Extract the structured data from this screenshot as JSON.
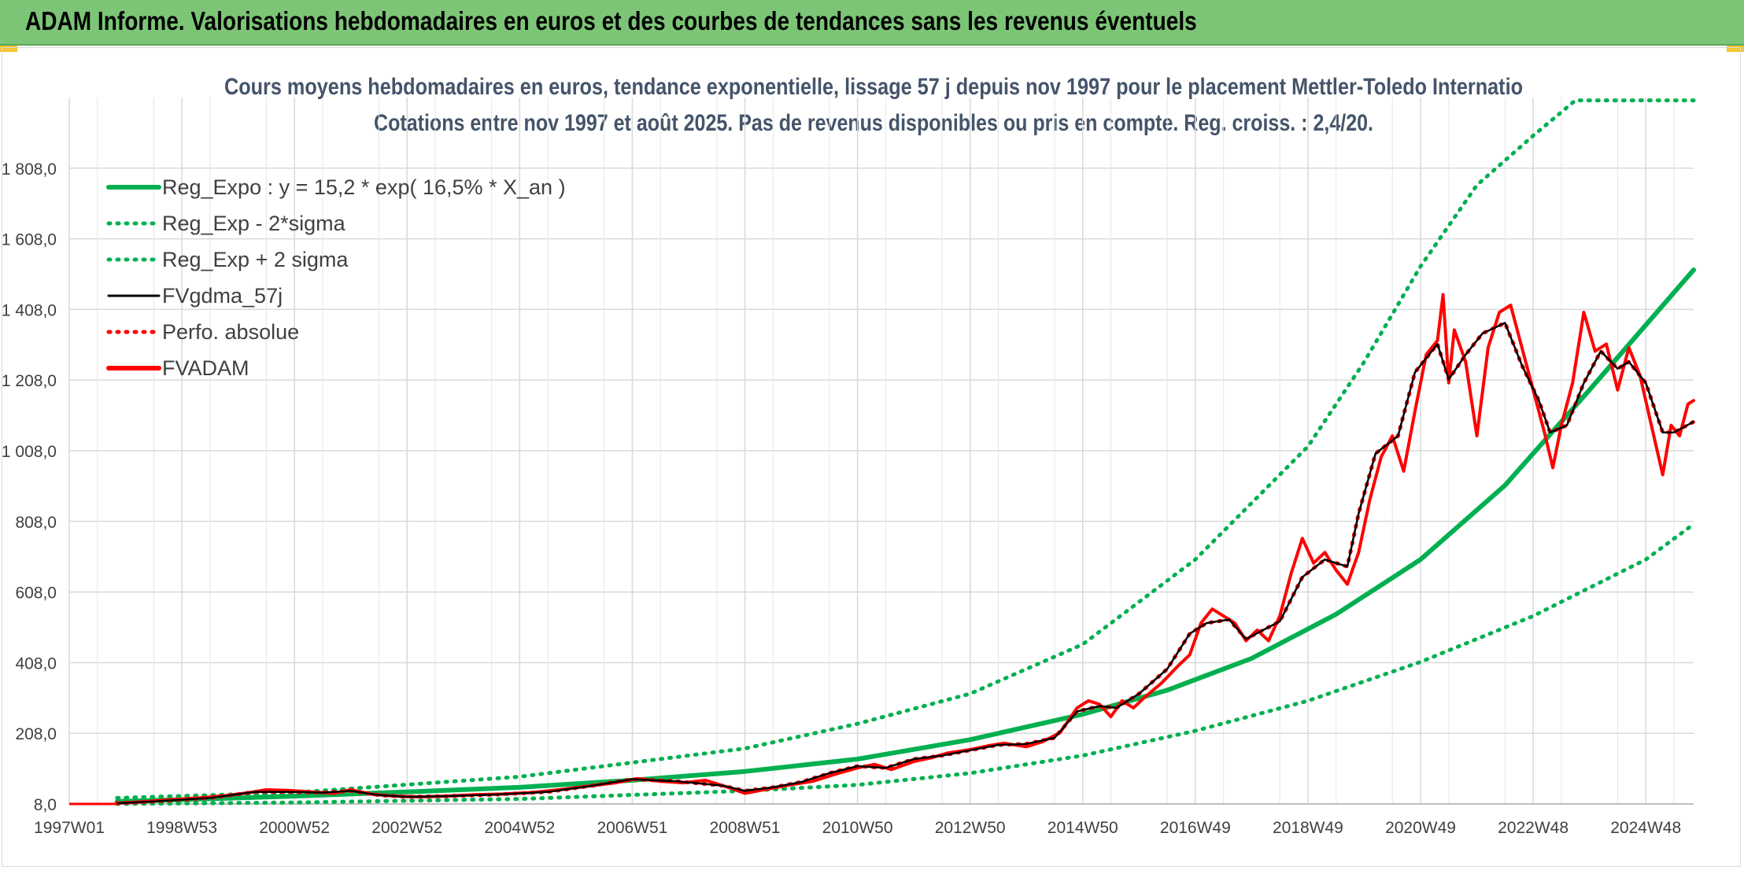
{
  "banner": {
    "title": "ADAM Informe. Valorisations hebdomadaires en euros et des courbes de tendances sans les revenus éventuels"
  },
  "colors": {
    "banner": "#7cc576",
    "trend": "#00b050",
    "smooth": "#000000",
    "price": "#ff0000",
    "title_text": "#44546a"
  },
  "chart_data": {
    "type": "line",
    "title": "Cours moyens hebdomadaires en euros, tendance exponentielle, lissage 57 j depuis nov 1997 pour le placement Mettler-Toledo Internatio",
    "subtitle": "Cotations entre nov 1997 et août 2025. Pas de revenus disponibles ou pris en compte. Reg. croiss. : 2,4/20.",
    "x_range": [
      1997.0,
      2025.85
    ],
    "ylim": [
      8,
      2008
    ],
    "y_ticks": [
      8,
      208,
      408,
      608,
      808,
      1008,
      1208,
      1408,
      1608,
      1808
    ],
    "y_tick_labels": [
      "8,0",
      "208,0",
      "408,0",
      "608,0",
      "808,0",
      "1 008,0",
      "1 208,0",
      "1 408,0",
      "1 608,0",
      "1 808,0"
    ],
    "x_ticks": [
      1997.0,
      1999.0,
      2001.0,
      2003.0,
      2005.0,
      2007.0,
      2009.0,
      2011.0,
      2013.0,
      2015.0,
      2017.0,
      2019.0,
      2021.0,
      2023.0,
      2025.0
    ],
    "x_tick_labels": [
      "1997W01",
      "1998W53",
      "2000W52",
      "2002W52",
      "2004W52",
      "2006W51",
      "2008W51",
      "2010W50",
      "2012W50",
      "2014W50",
      "2016W49",
      "2018W49",
      "2020W49",
      "2022W48",
      "2024W48"
    ],
    "grid": true,
    "legend_position": "top-left",
    "legend": [
      {
        "label": "Reg_Expo : y = 15,2 * exp( 16,5% *  X_an )",
        "color": "#00b050",
        "style": "solid-thick"
      },
      {
        "label": "Reg_Exp - 2*sigma",
        "color": "#00b050",
        "style": "dotted"
      },
      {
        "label": "Reg_Exp + 2 sigma",
        "color": "#00b050",
        "style": "dotted"
      },
      {
        "label": "FVgdma_57j",
        "color": "#000000",
        "style": "solid"
      },
      {
        "label": "Perfo. absolue",
        "color": "#ff0000",
        "style": "dotted"
      },
      {
        "label": "FVADAM",
        "color": "#ff0000",
        "style": "solid-thick"
      }
    ],
    "series": [
      {
        "name": "Reg_Expo : y = 15,2 * exp( 16,5% *  X_an )",
        "x": [
          1997.85,
          1999.0,
          2001.0,
          2003.0,
          2005.0,
          2007.0,
          2009.0,
          2011.0,
          2013.0,
          2015.0,
          2016.5,
          2018.0,
          2019.5,
          2021.0,
          2022.5,
          2024.0,
          2025.85
        ],
        "y": [
          15,
          20,
          30,
          42,
          55,
          75,
          100,
          135,
          190,
          262,
          330,
          420,
          545,
          700,
          910,
          1180,
          1520
        ]
      },
      {
        "name": "Reg_Exp - 2*sigma",
        "x": [
          1997.85,
          2001.0,
          2005.0,
          2009.0,
          2011.0,
          2013.0,
          2015.0,
          2017.0,
          2019.0,
          2021.0,
          2023.0,
          2025.0,
          2025.85
        ],
        "y": [
          8,
          12,
          22,
          45,
          62,
          95,
          145,
          215,
          300,
          410,
          540,
          700,
          800
        ]
      },
      {
        "name": "Reg_Exp + 2 sigma",
        "x": [
          1997.85,
          2001.0,
          2005.0,
          2009.0,
          2011.0,
          2013.0,
          2015.0,
          2017.0,
          2019.0,
          2020.0,
          2021.0,
          2022.0,
          2023.0,
          2023.75,
          2025.85
        ],
        "y": [
          25,
          40,
          85,
          165,
          235,
          320,
          460,
          700,
          1020,
          1260,
          1530,
          1760,
          1900,
          2000,
          2000
        ]
      },
      {
        "name": "FVgdma_57j",
        "x": [
          1997.85,
          1998.5,
          1999.5,
          2000.3,
          2000.9,
          2001.5,
          2002.0,
          2002.5,
          2003.0,
          2003.7,
          2004.5,
          2005.5,
          2006.3,
          2007.0,
          2007.8,
          2008.6,
          2009.0,
          2009.5,
          2010.0,
          2010.5,
          2011.0,
          2011.5,
          2012.0,
          2012.5,
          2013.0,
          2013.5,
          2014.0,
          2014.5,
          2014.9,
          2015.3,
          2015.6,
          2016.0,
          2016.5,
          2016.9,
          2017.2,
          2017.6,
          2017.9,
          2018.2,
          2018.5,
          2018.9,
          2019.3,
          2019.7,
          2019.9,
          2020.2,
          2020.6,
          2020.9,
          2021.3,
          2021.5,
          2021.8,
          2022.1,
          2022.5,
          2022.8,
          2023.1,
          2023.3,
          2023.6,
          2023.9,
          2024.2,
          2024.5,
          2024.7,
          2025.0,
          2025.3,
          2025.5,
          2025.85
        ],
        "y": [
          10,
          15,
          25,
          42,
          42,
          40,
          45,
          33,
          28,
          30,
          34,
          42,
          60,
          78,
          72,
          60,
          45,
          55,
          70,
          95,
          115,
          110,
          135,
          145,
          160,
          175,
          178,
          195,
          270,
          285,
          280,
          320,
          390,
          490,
          520,
          530,
          475,
          500,
          525,
          650,
          700,
          680,
          830,
          1000,
          1050,
          1230,
          1310,
          1210,
          1280,
          1340,
          1370,
          1250,
          1150,
          1060,
          1080,
          1200,
          1290,
          1240,
          1260,
          1200,
          1060,
          1060,
          1090
        ]
      },
      {
        "name": "Perfo. absolue",
        "x": [
          1997.85,
          1998.5,
          1999.5,
          2000.3,
          2000.9,
          2001.5,
          2002.0,
          2002.5,
          2003.0,
          2003.7,
          2004.5,
          2005.5,
          2006.3,
          2007.0,
          2007.8,
          2008.6,
          2009.0,
          2009.5,
          2010.0,
          2010.5,
          2011.0,
          2011.5,
          2012.0,
          2012.5,
          2013.0,
          2013.5,
          2014.0,
          2014.5,
          2014.9,
          2015.3,
          2015.6,
          2016.0,
          2016.5,
          2016.9,
          2017.2,
          2017.6,
          2017.9,
          2018.2,
          2018.5,
          2018.9,
          2019.3,
          2019.7,
          2019.9,
          2020.2,
          2020.6,
          2020.9,
          2021.3,
          2021.5,
          2021.8,
          2022.1,
          2022.5,
          2022.8,
          2023.1,
          2023.3,
          2023.6,
          2023.9,
          2024.2,
          2024.5,
          2024.7,
          2025.0,
          2025.3,
          2025.5,
          2025.85
        ],
        "y": [
          10,
          15,
          25,
          42,
          42,
          40,
          45,
          33,
          28,
          30,
          34,
          42,
          60,
          78,
          72,
          60,
          45,
          55,
          70,
          95,
          115,
          110,
          135,
          145,
          160,
          175,
          178,
          195,
          270,
          285,
          280,
          320,
          390,
          490,
          520,
          530,
          475,
          500,
          525,
          650,
          700,
          680,
          830,
          1000,
          1050,
          1230,
          1310,
          1210,
          1280,
          1340,
          1370,
          1250,
          1150,
          1060,
          1080,
          1200,
          1290,
          1240,
          1260,
          1200,
          1060,
          1060,
          1090
        ]
      },
      {
        "name": "FVADAM",
        "x": [
          1997.85,
          1998.3,
          1998.8,
          1999.3,
          1999.8,
          2000.2,
          2000.5,
          2000.9,
          2001.3,
          2001.7,
          2002.0,
          2002.4,
          2002.8,
          2003.2,
          2003.7,
          2004.2,
          2004.7,
          2005.2,
          2005.7,
          2006.2,
          2006.7,
          2007.1,
          2007.5,
          2007.9,
          2008.3,
          2008.7,
          2009.0,
          2009.4,
          2009.8,
          2010.2,
          2010.6,
          2011.0,
          2011.3,
          2011.6,
          2012.0,
          2012.3,
          2012.6,
          2013.0,
          2013.3,
          2013.6,
          2014.0,
          2014.3,
          2014.6,
          2014.9,
          2015.1,
          2015.3,
          2015.5,
          2015.7,
          2015.9,
          2016.1,
          2016.4,
          2016.7,
          2016.9,
          2017.1,
          2017.3,
          2017.5,
          2017.7,
          2017.9,
          2018.1,
          2018.3,
          2018.5,
          2018.7,
          2018.9,
          2019.1,
          2019.3,
          2019.5,
          2019.7,
          2019.9,
          2020.1,
          2020.3,
          2020.5,
          2020.7,
          2020.9,
          2021.1,
          2021.3,
          2021.4,
          2021.5,
          2021.6,
          2021.8,
          2022.0,
          2022.2,
          2022.4,
          2022.6,
          2022.8,
          2023.0,
          2023.2,
          2023.35,
          2023.5,
          2023.7,
          2023.9,
          2024.1,
          2024.3,
          2024.5,
          2024.7,
          2024.9,
          2025.1,
          2025.3,
          2025.45,
          2025.6,
          2025.75,
          2025.85
        ],
        "y": [
          10,
          14,
          20,
          25,
          32,
          40,
          48,
          46,
          42,
          38,
          48,
          35,
          30,
          28,
          30,
          34,
          36,
          40,
          48,
          58,
          68,
          80,
          72,
          68,
          75,
          55,
          38,
          50,
          62,
          72,
          92,
          110,
          120,
          105,
          128,
          138,
          152,
          162,
          172,
          180,
          170,
          185,
          210,
          280,
          300,
          290,
          255,
          300,
          280,
          310,
          350,
          400,
          430,
          520,
          560,
          540,
          520,
          470,
          500,
          470,
          540,
          660,
          760,
          690,
          720,
          670,
          630,
          720,
          870,
          990,
          1050,
          950,
          1120,
          1280,
          1320,
          1450,
          1200,
          1350,
          1260,
          1050,
          1300,
          1400,
          1420,
          1300,
          1180,
          1060,
          960,
          1080,
          1200,
          1400,
          1290,
          1310,
          1180,
          1300,
          1220,
          1080,
          940,
          1080,
          1050,
          1140,
          1150
        ]
      }
    ]
  }
}
